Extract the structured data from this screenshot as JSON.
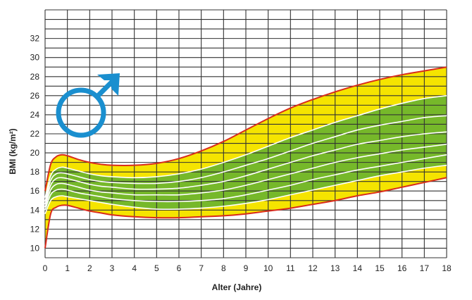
{
  "chart_data": {
    "type": "area",
    "title": "",
    "xlabel": "Alter (Jahre)",
    "ylabel": "BMI (kg/m²)",
    "xlim": [
      0,
      18
    ],
    "ylim": [
      9,
      35
    ],
    "x_ticks": [
      0,
      1,
      2,
      3,
      4,
      5,
      6,
      7,
      8,
      9,
      10,
      11,
      12,
      13,
      14,
      15,
      16,
      17,
      18
    ],
    "y_ticks": [
      10,
      12,
      14,
      16,
      18,
      20,
      22,
      24,
      26,
      28,
      30,
      32
    ],
    "x_grid_step": 1,
    "y_grid_step": 1,
    "grid": true,
    "symbol": "male-symbol",
    "colors": {
      "outer_band": "#f5e400",
      "inner_band": "#76b82a",
      "outer_lines": "#d92b1c",
      "inner_lines": "#ffffff",
      "grid": "#333333",
      "symbol": "#1a8fcf"
    },
    "x": [
      0,
      0.25,
      0.5,
      0.75,
      1,
      1.5,
      2,
      2.5,
      3,
      4,
      5,
      6,
      7,
      8,
      9,
      10,
      11,
      12,
      13,
      14,
      15,
      16,
      17,
      18
    ],
    "series": [
      {
        "role": "upper-outer",
        "values": [
          16.0,
          18.8,
          19.6,
          19.8,
          19.7,
          19.3,
          19.0,
          18.8,
          18.7,
          18.7,
          18.9,
          19.4,
          20.2,
          21.2,
          22.4,
          23.6,
          24.7,
          25.6,
          26.4,
          27.1,
          27.7,
          28.2,
          28.6,
          29.0
        ]
      },
      {
        "role": "upper-inner",
        "values": [
          15.3,
          17.6,
          18.3,
          18.5,
          18.4,
          18.1,
          17.8,
          17.6,
          17.5,
          17.4,
          17.5,
          17.8,
          18.3,
          19.0,
          19.8,
          20.7,
          21.6,
          22.4,
          23.2,
          23.9,
          24.6,
          25.2,
          25.7,
          26.0
        ]
      },
      {
        "role": "inner",
        "values": [
          14.9,
          17.1,
          17.8,
          17.9,
          17.8,
          17.5,
          17.2,
          17.0,
          16.9,
          16.8,
          16.8,
          17.0,
          17.4,
          18.0,
          18.7,
          19.4,
          20.2,
          21.0,
          21.7,
          22.4,
          22.9,
          23.3,
          23.7,
          23.9
        ]
      },
      {
        "role": "inner",
        "values": [
          14.6,
          16.6,
          17.3,
          17.4,
          17.3,
          17.0,
          16.7,
          16.5,
          16.4,
          16.2,
          16.2,
          16.3,
          16.6,
          17.0,
          17.6,
          18.3,
          19.0,
          19.7,
          20.3,
          20.9,
          21.3,
          21.7,
          22.0,
          22.2
        ]
      },
      {
        "role": "inner",
        "values": [
          14.3,
          16.1,
          16.7,
          16.8,
          16.7,
          16.4,
          16.1,
          15.9,
          15.8,
          15.6,
          15.6,
          15.6,
          15.8,
          16.1,
          16.6,
          17.2,
          17.8,
          18.4,
          19.0,
          19.5,
          19.9,
          20.3,
          20.6,
          20.9
        ]
      },
      {
        "role": "inner",
        "values": [
          14.0,
          15.6,
          16.1,
          16.2,
          16.1,
          15.8,
          15.6,
          15.4,
          15.2,
          15.0,
          14.9,
          14.9,
          15.0,
          15.2,
          15.6,
          16.1,
          16.6,
          17.2,
          17.7,
          18.2,
          18.6,
          19.0,
          19.4,
          19.8
        ]
      },
      {
        "role": "lower-inner",
        "values": [
          13.6,
          15.0,
          15.4,
          15.5,
          15.4,
          15.2,
          15.0,
          14.8,
          14.6,
          14.3,
          14.1,
          14.1,
          14.2,
          14.4,
          14.7,
          15.1,
          15.6,
          16.1,
          16.6,
          17.1,
          17.6,
          18.0,
          18.4,
          18.7
        ]
      },
      {
        "role": "lower-outer",
        "values": [
          10.0,
          13.6,
          14.3,
          14.5,
          14.5,
          14.2,
          13.9,
          13.7,
          13.5,
          13.3,
          13.2,
          13.2,
          13.3,
          13.4,
          13.6,
          13.9,
          14.2,
          14.6,
          15.0,
          15.5,
          15.9,
          16.4,
          16.9,
          17.4
        ]
      }
    ]
  }
}
